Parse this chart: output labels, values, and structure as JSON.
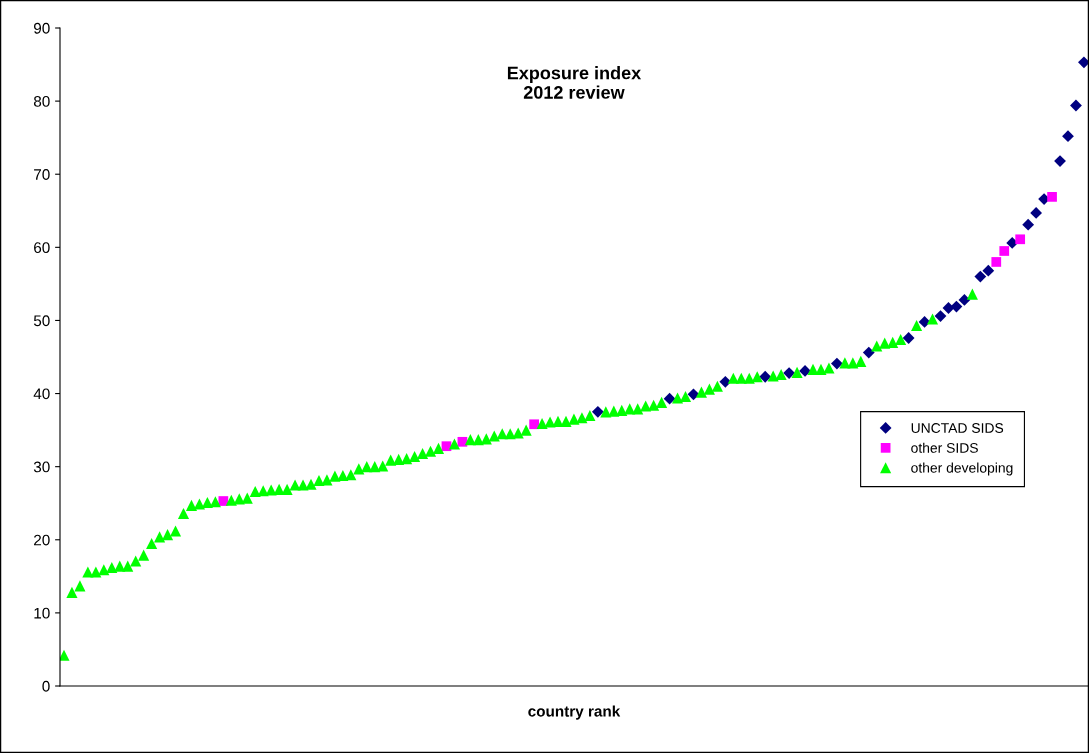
{
  "chart_data": {
    "type": "scatter",
    "title": "Exposure index\n2012 review",
    "xlabel": "country rank",
    "categories": [
      null,
      null,
      null,
      null,
      null,
      null,
      null,
      null,
      null,
      null,
      null,
      null,
      null,
      null,
      null,
      null,
      null,
      null,
      null,
      null,
      null,
      null,
      null,
      null,
      null,
      null,
      null,
      null,
      null,
      null,
      null,
      null,
      null,
      null,
      null,
      null,
      null,
      null,
      null,
      null,
      null,
      null,
      null,
      null,
      null,
      null,
      null,
      null,
      null,
      null,
      null,
      null,
      null,
      null,
      null,
      null,
      null,
      null,
      null,
      null,
      null,
      null,
      null,
      null,
      null,
      null,
      null,
      null,
      null,
      null,
      null,
      null,
      null,
      null,
      null,
      null,
      null,
      null,
      null,
      null,
      null,
      null,
      null,
      null,
      null,
      null,
      null,
      null,
      null,
      null,
      null,
      null,
      null,
      null,
      null,
      null,
      null,
      null,
      null,
      null,
      null,
      null,
      null,
      null,
      null,
      null,
      null,
      null,
      null,
      null,
      null,
      null,
      null,
      null,
      null,
      null,
      null,
      null,
      null,
      null,
      null,
      null,
      null,
      null,
      null,
      null,
      null,
      null,
      null
    ],
    "series": [
      {
        "name": "UNCTAD SIDS",
        "color": "#000080",
        "marker": "diamond",
        "values": [
          null,
          null,
          null,
          null,
          null,
          null,
          null,
          null,
          null,
          null,
          null,
          null,
          null,
          null,
          null,
          null,
          null,
          null,
          null,
          null,
          null,
          null,
          null,
          null,
          null,
          null,
          null,
          null,
          null,
          null,
          null,
          null,
          null,
          null,
          null,
          null,
          null,
          null,
          null,
          null,
          null,
          null,
          null,
          null,
          null,
          null,
          null,
          null,
          null,
          null,
          null,
          null,
          null,
          null,
          null,
          null,
          null,
          null,
          null,
          null,
          null,
          null,
          null,
          null,
          null,
          null,
          null,
          37.5,
          null,
          null,
          null,
          null,
          null,
          null,
          null,
          null,
          39.3,
          null,
          null,
          39.9,
          null,
          null,
          null,
          41.6,
          null,
          null,
          null,
          null,
          42.3,
          null,
          null,
          42.8,
          null,
          43.1,
          null,
          null,
          null,
          44.1,
          null,
          null,
          null,
          45.6,
          null,
          null,
          null,
          null,
          47.6,
          null,
          49.8,
          null,
          50.6,
          51.7,
          51.9,
          52.8,
          null,
          56.0,
          56.8,
          null,
          null,
          60.6,
          null,
          63.1,
          64.7,
          66.6,
          null,
          71.8,
          75.2,
          79.4,
          85.3
        ]
      },
      {
        "name": "other SIDS",
        "color": "#ff00ff",
        "marker": "square",
        "values": [
          null,
          null,
          null,
          null,
          null,
          null,
          null,
          null,
          null,
          null,
          null,
          null,
          null,
          null,
          null,
          null,
          null,
          null,
          null,
          null,
          25.3,
          null,
          null,
          null,
          null,
          null,
          null,
          null,
          null,
          null,
          null,
          null,
          null,
          null,
          null,
          null,
          null,
          null,
          null,
          null,
          null,
          null,
          null,
          null,
          null,
          null,
          null,
          null,
          32.8,
          null,
          33.4,
          null,
          null,
          null,
          null,
          null,
          null,
          null,
          null,
          35.8,
          null,
          null,
          null,
          null,
          null,
          null,
          null,
          null,
          null,
          null,
          null,
          null,
          null,
          null,
          null,
          null,
          null,
          null,
          null,
          null,
          null,
          null,
          null,
          null,
          null,
          null,
          null,
          null,
          null,
          null,
          null,
          null,
          null,
          null,
          null,
          null,
          null,
          null,
          null,
          null,
          null,
          null,
          null,
          null,
          null,
          null,
          null,
          null,
          null,
          null,
          null,
          null,
          null,
          null,
          null,
          null,
          null,
          58.0,
          59.5,
          null,
          61.1,
          null,
          null,
          null,
          66.9,
          null,
          null,
          null,
          null
        ]
      },
      {
        "name": "other developing",
        "color": "#00ff00",
        "marker": "triangle",
        "values": [
          4.2,
          12.8,
          13.7,
          15.6,
          15.6,
          15.9,
          16.2,
          16.4,
          16.4,
          17.1,
          17.9,
          19.5,
          20.4,
          20.7,
          21.2,
          23.6,
          24.7,
          24.9,
          25.1,
          25.2,
          null,
          25.4,
          25.6,
          25.7,
          26.6,
          26.7,
          26.8,
          26.9,
          26.9,
          27.5,
          27.5,
          27.6,
          28.1,
          28.2,
          28.7,
          28.8,
          28.9,
          29.7,
          30.0,
          30.0,
          30.1,
          30.9,
          31.0,
          31.1,
          31.4,
          31.8,
          32.1,
          32.5,
          null,
          33.1,
          null,
          33.7,
          33.7,
          33.8,
          34.2,
          34.5,
          34.5,
          34.6,
          35.0,
          null,
          35.9,
          36.1,
          36.2,
          36.2,
          36.5,
          36.7,
          37.0,
          null,
          37.5,
          37.6,
          37.7,
          37.9,
          37.9,
          38.3,
          38.4,
          38.8,
          null,
          39.4,
          39.6,
          null,
          40.2,
          40.6,
          41.0,
          null,
          42.1,
          42.1,
          42.1,
          42.3,
          null,
          42.4,
          42.6,
          null,
          42.9,
          null,
          43.3,
          43.3,
          43.5,
          null,
          44.2,
          44.2,
          44.4,
          null,
          46.5,
          46.9,
          47.0,
          47.4,
          null,
          49.3,
          null,
          50.2,
          null,
          null,
          null,
          null,
          53.6,
          null,
          null,
          null,
          null,
          null,
          null,
          null,
          null,
          null,
          null,
          null,
          null,
          null,
          null
        ]
      }
    ],
    "ylim": [
      0,
      90
    ],
    "yticks": [
      0,
      10,
      20,
      30,
      40,
      50,
      60,
      70,
      80,
      90
    ],
    "tick_labels": "y",
    "grid": false,
    "legend": "right"
  }
}
